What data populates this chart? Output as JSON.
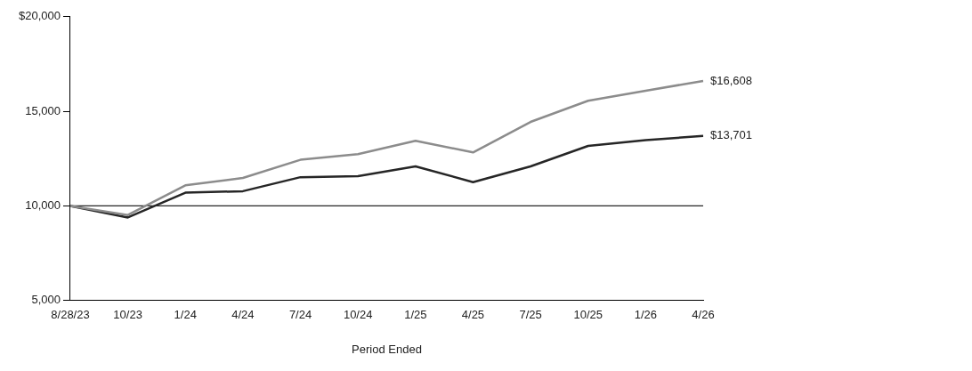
{
  "chart_data": {
    "type": "line",
    "xlabel": "Period Ended",
    "categories": [
      "8/28/23",
      "10/23",
      "1/24",
      "4/24",
      "7/24",
      "10/24",
      "1/25",
      "4/25",
      "7/25",
      "10/25",
      "1/26",
      "4/26"
    ],
    "series": [
      {
        "color": "#8c8c8c",
        "values": [
          10000,
          9520,
          11090,
          11480,
          12440,
          12740,
          13440,
          12830,
          14440,
          15560,
          16090,
          16608
        ],
        "value_labels": [
          null,
          null,
          null,
          null,
          null,
          null,
          null,
          null,
          null,
          null,
          null,
          "$16,608"
        ]
      },
      {
        "color": "#262626",
        "values": [
          10000,
          9390,
          10700,
          10780,
          11520,
          11570,
          12090,
          11260,
          12090,
          13170,
          13480,
          13701
        ],
        "value_labels": [
          null,
          null,
          null,
          null,
          null,
          null,
          null,
          null,
          null,
          null,
          null,
          "$13,701"
        ]
      }
    ],
    "ylim": [
      5000,
      20000
    ],
    "yticks": [
      {
        "value": 5000,
        "label": "5,000"
      },
      {
        "value": 10000,
        "label": "10,000"
      },
      {
        "value": 15000,
        "label": "15,000"
      },
      {
        "value": 20000,
        "label": "$20,000"
      }
    ],
    "ref_lines": [
      {
        "axis": "y",
        "value": 10000,
        "color": "#262626"
      }
    ],
    "grid": false,
    "legend": false,
    "marker": "none",
    "line_style": "solid"
  }
}
